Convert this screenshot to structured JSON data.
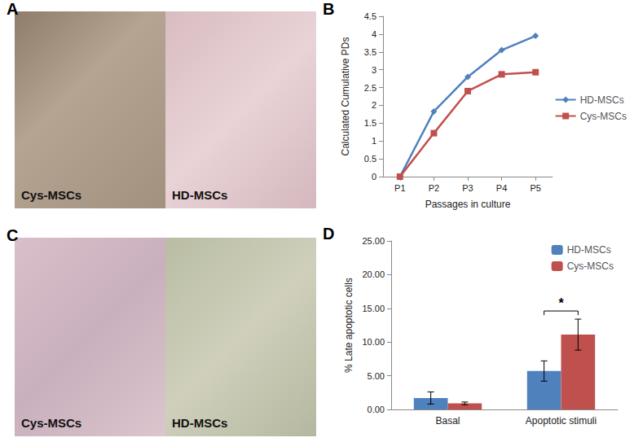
{
  "chart_data": [
    {
      "type": "line",
      "categories": [
        "P1",
        "P2",
        "P3",
        "P4",
        "P5"
      ],
      "x_label": "Passages in culture",
      "y_label": "Calculated Cumulative PDs",
      "ylim": [
        0,
        4.5
      ],
      "yticks": [
        0,
        0.5,
        1,
        1.5,
        2,
        2.5,
        3,
        3.5,
        4,
        4.5
      ],
      "grid": false,
      "legend": "right",
      "series": [
        {
          "name": "HD-MSCs",
          "color": "#4f81bd",
          "marker": "diamond",
          "values": [
            0,
            1.83,
            2.8,
            3.55,
            3.95
          ]
        },
        {
          "name": "Cys-MSCs",
          "color": "#c0504d",
          "marker": "square",
          "values": [
            0,
            1.22,
            2.4,
            2.87,
            2.93
          ]
        }
      ]
    },
    {
      "type": "bar",
      "categories": [
        "Basal",
        "Apoptotic stimuli"
      ],
      "y_label": "% Late apoptotic cells",
      "ylim": [
        0,
        25
      ],
      "yticks": [
        {
          "value": 0,
          "label": "0.00"
        },
        {
          "value": 5,
          "label": "5.00"
        },
        {
          "value": 10,
          "label": "10.00"
        },
        {
          "value": 15,
          "label": "15.00"
        },
        {
          "value": 20,
          "label": "20.00"
        },
        {
          "value": 25,
          "label": "25.00"
        }
      ],
      "grid": false,
      "legend": "top right",
      "series": [
        {
          "name": "HD-MSCs",
          "color": "#4f81bd",
          "values": [
            1.7,
            5.7
          ],
          "errors": [
            0.9,
            1.5
          ]
        },
        {
          "name": "Cys-MSCs",
          "color": "#c0504d",
          "values": [
            0.9,
            11.1
          ],
          "errors": [
            0.2,
            2.3
          ]
        }
      ],
      "annotations": [
        {
          "text": "*",
          "category": "Apoptotic stimuli"
        }
      ]
    }
  ],
  "figure": {
    "panel_labels": [
      "A",
      "B",
      "C",
      "D"
    ],
    "images": [
      {
        "labels": [
          "Cys-MSCs",
          "HD-MSCs"
        ]
      },
      {
        "labels": [
          "Cys-MSCs",
          "HD-MSCs"
        ]
      }
    ]
  }
}
